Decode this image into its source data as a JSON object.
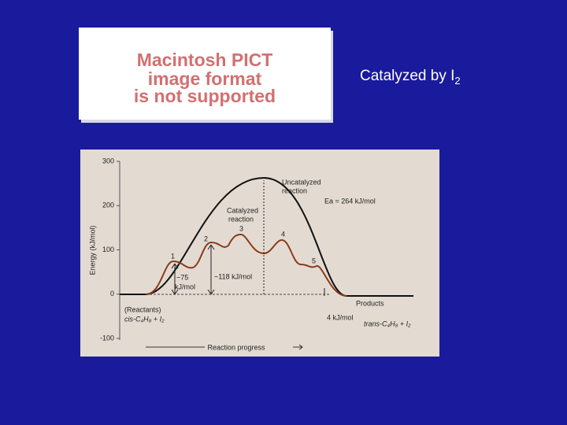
{
  "pict": {
    "lines": [
      "Macintosh PICT",
      "image format",
      "is not supported"
    ]
  },
  "caption": {
    "text": "Catalyzed by I",
    "subscript": "2"
  },
  "diagram": {
    "y_label": "Energy (kJ/mol)",
    "x_label": "Reaction progress",
    "ylim": [
      -100,
      300
    ],
    "yticks": [
      300,
      200,
      100,
      0,
      -100
    ],
    "uncatalyzed_label": [
      "Uncatalyzed",
      "reaction"
    ],
    "ea_label": "Ea = 264 kJ/mol",
    "catalyzed_label": [
      "Catalyzed",
      "reaction"
    ],
    "steps": [
      "1",
      "2",
      "3",
      "4",
      "5"
    ],
    "barrier1": [
      "~75",
      "kJ/mol"
    ],
    "barrier2": "~118 kJ/mol",
    "reactants": [
      "(Reactants)",
      "cis-C₄H₈ + I₂"
    ],
    "products": [
      "Products",
      "trans-C₄H₈ + I₂"
    ],
    "delta": "4 kJ/mol"
  }
}
